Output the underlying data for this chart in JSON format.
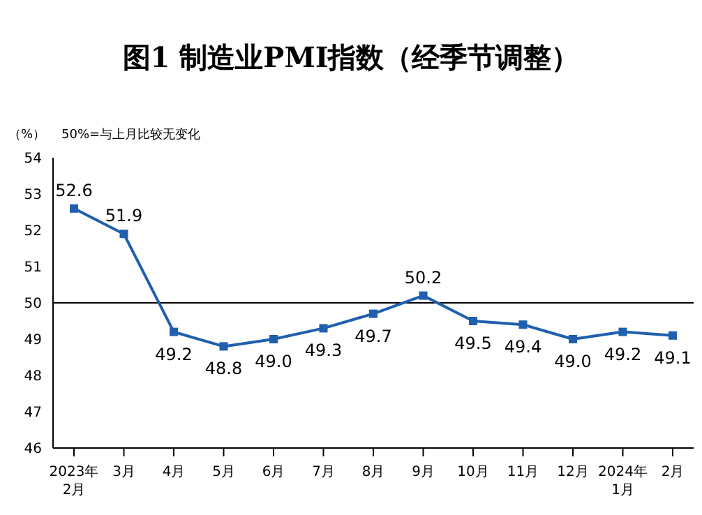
{
  "chart_data": {
    "type": "line",
    "title": "图1  制造业PMI指数（经季节调整）",
    "ylabel": "（%）",
    "annotations": [
      "50%=与上月比较无变化"
    ],
    "categories": [
      "2023年\n2月",
      "3月",
      "4月",
      "5月",
      "6月",
      "7月",
      "8月",
      "9月",
      "10月",
      "11月",
      "12月",
      "2024年\n1月",
      "2月"
    ],
    "series": [
      {
        "color": "#1f5fad",
        "values": [
          52.6,
          51.9,
          49.2,
          48.8,
          49.0,
          49.3,
          49.7,
          50.2,
          49.5,
          49.4,
          49.0,
          49.2,
          49.1
        ]
      }
    ],
    "value_labels": [
      "52.6",
      "51.9",
      "49.2",
      "48.8",
      "49.0",
      "49.3",
      "49.7",
      "50.2",
      "49.5",
      "49.4",
      "49.0",
      "49.2",
      "49.1"
    ],
    "ylim": [
      46,
      54
    ],
    "yticks": [
      46,
      47,
      48,
      49,
      50,
      51,
      52,
      53,
      54
    ],
    "ref_lines": [
      {
        "axis": "y",
        "value": 50,
        "color": "#000000"
      }
    ],
    "grid": false,
    "legend": false,
    "marker": "square",
    "line_style": "solid"
  }
}
